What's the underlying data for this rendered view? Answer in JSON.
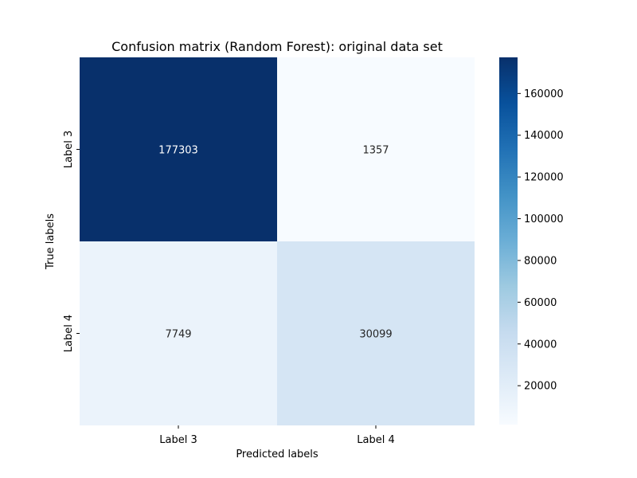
{
  "chart_data": {
    "type": "heatmap",
    "title": "Confusion matrix (Random Forest): original data set",
    "xlabel": "Predicted labels",
    "ylabel": "True labels",
    "x_categories": [
      "Label 3",
      "Label 4"
    ],
    "y_categories": [
      "Label 3",
      "Label 4"
    ],
    "values": [
      [
        177303,
        1357
      ],
      [
        7749,
        30099
      ]
    ],
    "colormap": "Blues",
    "color_range": [
      1357,
      177303
    ],
    "colorbar_ticks": [
      20000,
      40000,
      60000,
      80000,
      100000,
      120000,
      140000,
      160000
    ],
    "colors": {
      "cells": [
        [
          "#08306b",
          "#f7fbff"
        ],
        [
          "#ebf3fb",
          "#d5e5f4"
        ]
      ],
      "text_on_dark": "#ffffff",
      "text_on_light": "#262626",
      "axis_text": "#000000"
    }
  }
}
